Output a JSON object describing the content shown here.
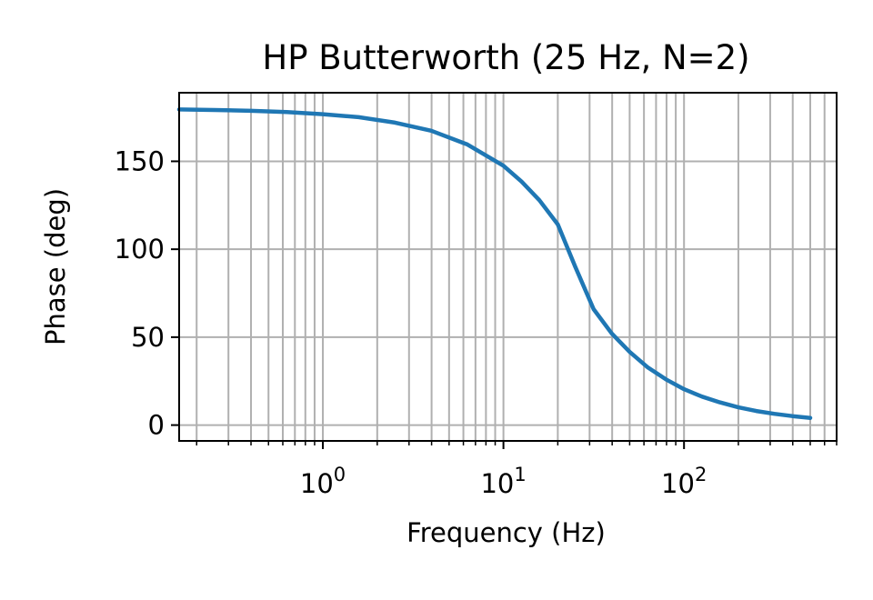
{
  "chart_data": {
    "type": "line",
    "title": "HP Butterworth (25 Hz, N=2)",
    "xlabel": "Frequency (Hz)",
    "ylabel": "Phase (deg)",
    "x_scale": "log",
    "xlim": [
      0.16,
      700
    ],
    "ylim": [
      -9,
      189
    ],
    "grid": true,
    "grid_minor_x": true,
    "x_ticks": [
      {
        "base": "10",
        "exp": "0",
        "value": 1
      },
      {
        "base": "10",
        "exp": "1",
        "value": 10
      },
      {
        "base": "10",
        "exp": "2",
        "value": 100
      }
    ],
    "y_ticks": [
      {
        "label": "0",
        "value": 0
      },
      {
        "label": "50",
        "value": 50
      },
      {
        "label": "100",
        "value": 100
      },
      {
        "label": "150",
        "value": 150
      }
    ],
    "series": [
      {
        "color": "#1f77b4",
        "x": [
          0.16,
          0.25,
          0.4,
          0.63,
          1,
          1.58,
          2.51,
          3.98,
          6.31,
          10,
          12.6,
          15.8,
          20,
          25,
          31.6,
          39.8,
          50,
          63.1,
          79.4,
          100,
          126,
          158,
          200,
          251,
          316,
          398,
          500
        ],
        "y": [
          179.5,
          179.2,
          178.7,
          178.0,
          176.8,
          175.1,
          172.0,
          167.4,
          159.6,
          147.5,
          138.5,
          127.9,
          114.1,
          90.0,
          65.9,
          52.1,
          41.6,
          32.7,
          26.0,
          20.4,
          16.2,
          12.9,
          10.1,
          8.0,
          6.4,
          5.1,
          4.1
        ]
      }
    ]
  }
}
